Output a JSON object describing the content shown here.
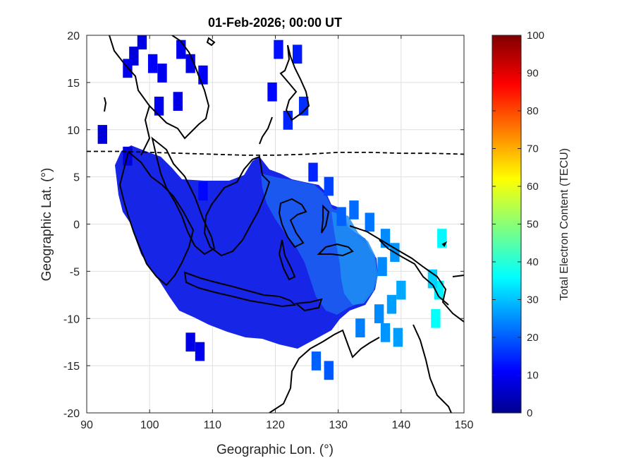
{
  "chart_data": {
    "type": "heatmap",
    "title": "01-Feb-2026; 00:00 UT",
    "xlabel": "Geographic Lon. (°)",
    "ylabel": "Geographic Lat. (°)",
    "xlim": [
      90,
      150
    ],
    "ylim": [
      -20,
      20
    ],
    "xticks": [
      "90",
      "100",
      "110",
      "120",
      "130",
      "140",
      "150"
    ],
    "yticks": [
      "-20",
      "-15",
      "-10",
      "-5",
      "0",
      "5",
      "10",
      "15",
      "20"
    ],
    "grid": true,
    "colorbar": {
      "label": "Total Electron Content (TECU)",
      "range": [
        0,
        100
      ],
      "ticks": [
        "0",
        "10",
        "20",
        "30",
        "40",
        "50",
        "60",
        "70",
        "80",
        "90",
        "100"
      ],
      "colormap": "jet"
    },
    "magnetic_equator_lat": [
      [
        90,
        7.7
      ],
      [
        95,
        7.7
      ],
      [
        100,
        7.6
      ],
      [
        105,
        7.5
      ],
      [
        110,
        7.4
      ],
      [
        115,
        7.3
      ],
      [
        120,
        7.3
      ],
      [
        125,
        7.4
      ],
      [
        130,
        7.6
      ],
      [
        135,
        7.6
      ],
      [
        140,
        7.5
      ],
      [
        145,
        7.5
      ],
      [
        150,
        7.4
      ]
    ],
    "tec_points": [
      [
        92.5,
        9.5,
        9
      ],
      [
        98.8,
        19.5,
        10
      ],
      [
        97.5,
        17.8,
        9
      ],
      [
        96.5,
        16.5,
        11
      ],
      [
        100.5,
        17.0,
        12
      ],
      [
        102.0,
        16.0,
        11
      ],
      [
        105.0,
        18.5,
        11
      ],
      [
        106.5,
        17.0,
        10
      ],
      [
        108.5,
        15.8,
        12
      ],
      [
        101.5,
        12.5,
        11
      ],
      [
        104.5,
        13.0,
        10
      ],
      [
        120.5,
        18.5,
        14
      ],
      [
        123.5,
        18.0,
        15
      ],
      [
        119.5,
        14.0,
        13
      ],
      [
        122.0,
        11.0,
        16
      ],
      [
        124.5,
        12.5,
        17
      ],
      [
        126.0,
        5.5,
        16
      ],
      [
        128.5,
        4.0,
        19
      ],
      [
        130.5,
        0.8,
        22
      ],
      [
        132.5,
        1.5,
        23
      ],
      [
        135.0,
        0.2,
        24
      ],
      [
        137.5,
        -1.5,
        26
      ],
      [
        139.0,
        -3.0,
        27
      ],
      [
        137.0,
        -4.5,
        26
      ],
      [
        140.0,
        -7.0,
        29
      ],
      [
        138.5,
        -8.5,
        28
      ],
      [
        136.5,
        -9.5,
        26
      ],
      [
        133.5,
        -11.0,
        25
      ],
      [
        137.5,
        -11.5,
        27
      ],
      [
        139.5,
        -12.0,
        28
      ],
      [
        146.5,
        -1.5,
        37
      ],
      [
        146.0,
        -7.0,
        36
      ],
      [
        145.5,
        -10.0,
        38
      ],
      [
        145.0,
        -5.8,
        33
      ],
      [
        126.5,
        -14.5,
        22
      ],
      [
        128.5,
        -15.5,
        21
      ],
      [
        106.5,
        -12.5,
        10
      ],
      [
        108.0,
        -13.5,
        11
      ],
      [
        96.5,
        7.2,
        9
      ],
      [
        108.5,
        3.5,
        13
      ]
    ]
  }
}
